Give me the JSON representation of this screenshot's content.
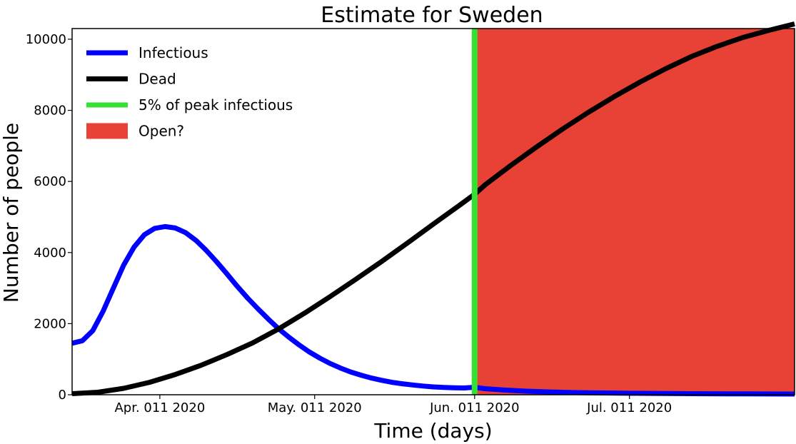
{
  "chart_data": {
    "type": "line",
    "title": "Estimate for Sweden",
    "xlabel": "Time (days)",
    "ylabel": "Number of people",
    "xlim": [
      0,
      140
    ],
    "ylim": [
      0,
      10300
    ],
    "x_ticks": [
      {
        "label": "Apr. 011 2020",
        "day": 17
      },
      {
        "label": "May. 011 2020",
        "day": 47
      },
      {
        "label": "Jun. 011 2020",
        "day": 78
      },
      {
        "label": "Jul. 011 2020",
        "day": 108
      }
    ],
    "y_ticks": [
      0,
      2000,
      4000,
      6000,
      8000,
      10000
    ],
    "series": [
      {
        "name": "Infectious",
        "color": "#0000ff",
        "x": [
          0,
          2,
          4,
          6,
          8,
          10,
          12,
          14,
          16,
          18,
          20,
          22,
          24,
          26,
          28,
          30,
          32,
          34,
          36,
          38,
          40,
          42,
          44,
          46,
          48,
          50,
          52,
          54,
          56,
          58,
          60,
          62,
          64,
          66,
          68,
          70,
          72,
          74,
          76,
          78,
          80,
          84,
          88,
          92,
          96,
          100,
          110,
          120,
          130,
          140
        ],
        "values": [
          1450,
          1520,
          1800,
          2350,
          3000,
          3650,
          4150,
          4500,
          4680,
          4730,
          4690,
          4560,
          4340,
          4060,
          3740,
          3400,
          3050,
          2720,
          2420,
          2130,
          1860,
          1620,
          1400,
          1200,
          1030,
          880,
          750,
          640,
          550,
          470,
          405,
          350,
          310,
          275,
          245,
          220,
          205,
          195,
          190,
          210,
          170,
          130,
          100,
          80,
          65,
          55,
          40,
          30,
          25,
          20
        ]
      },
      {
        "name": "Dead",
        "color": "#000000",
        "x": [
          0,
          5,
          10,
          15,
          20,
          25,
          30,
          35,
          40,
          45,
          50,
          55,
          60,
          65,
          70,
          75,
          78,
          80,
          85,
          90,
          95,
          100,
          105,
          110,
          115,
          120,
          125,
          130,
          135,
          140
        ],
        "values": [
          30,
          70,
          180,
          350,
          570,
          830,
          1130,
          1460,
          1850,
          2290,
          2760,
          3250,
          3750,
          4270,
          4800,
          5320,
          5640,
          5900,
          6450,
          6970,
          7470,
          7940,
          8380,
          8790,
          9170,
          9510,
          9800,
          10050,
          10250,
          10430
        ]
      },
      {
        "name": "5% of peak infectious",
        "color": "#33e033",
        "type": "vline",
        "x": 78
      }
    ],
    "shaded_region": {
      "name": "Open?",
      "color": "#e84136",
      "x_start": 78,
      "x_end": 140
    },
    "legend_position": "top-left",
    "grid": false
  }
}
